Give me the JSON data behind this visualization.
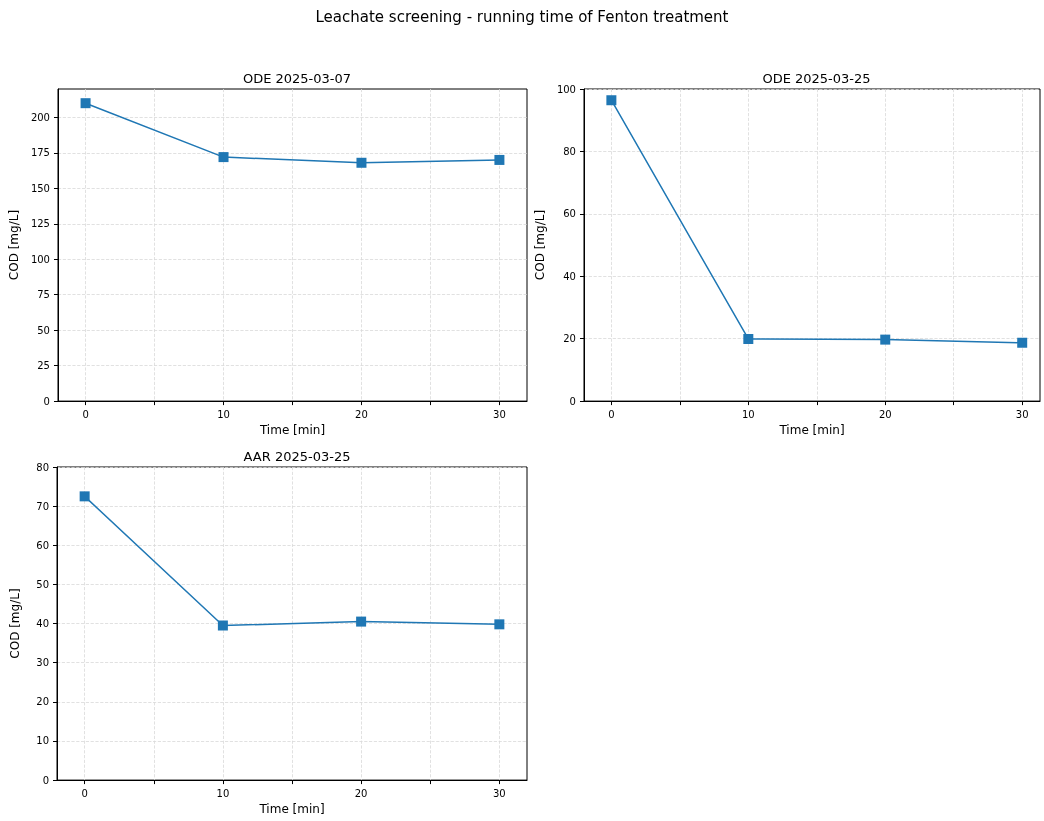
{
  "chart_data": [
    {
      "type": "line",
      "title": "ODE 2025-03-07",
      "annotations": [
        "Leachate screening - running time of Fenton treatment"
      ],
      "xlabel": "Time [min]",
      "ylabel": "COD [mg/L]",
      "x": [
        0,
        10,
        20,
        30
      ],
      "series": [
        {
          "color": "#1f77b4",
          "values": [
            210,
            172,
            168,
            170
          ]
        }
      ],
      "xlim": [
        -2,
        32
      ],
      "xticks": [
        0,
        {
          "value": 5,
          "label": null
        },
        10,
        {
          "value": 15,
          "label": null
        },
        20,
        {
          "value": 25,
          "label": null
        },
        30
      ],
      "ylim": [
        0,
        220
      ],
      "yticks": [
        0,
        25,
        50,
        75,
        100,
        125,
        150,
        175,
        200
      ],
      "grid": true,
      "marker": "square",
      "line_style": "solid"
    },
    {
      "type": "line",
      "title": "ODE 2025-03-25",
      "xlabel": "Time [min]",
      "ylabel": "COD [mg/L]",
      "x": [
        0,
        10,
        20,
        30
      ],
      "series": [
        {
          "color": "#1f77b4",
          "values": [
            96.4,
            19.9,
            19.7,
            18.7
          ]
        }
      ],
      "xlim": [
        -2,
        31.3
      ],
      "xticks": [
        0,
        {
          "value": 5,
          "label": null
        },
        10,
        {
          "value": 15,
          "label": null
        },
        20,
        {
          "value": 25,
          "label": null
        },
        30
      ],
      "ylim": [
        0,
        100
      ],
      "yticks": [
        0,
        20,
        40,
        60,
        80,
        100
      ],
      "grid": true,
      "marker": "square",
      "line_style": "solid"
    },
    {
      "type": "line",
      "title": "AAR 2025-03-25",
      "xlabel": "Time [min]",
      "ylabel": "COD [mg/L]",
      "x": [
        0,
        10,
        20,
        30
      ],
      "series": [
        {
          "color": "#1f77b4",
          "values": [
            72.5,
            39.5,
            40.5,
            39.8
          ]
        }
      ],
      "xlim": [
        -2,
        32
      ],
      "xticks": [
        0,
        {
          "value": 5,
          "label": null
        },
        10,
        {
          "value": 15,
          "label": null
        },
        20,
        {
          "value": 25,
          "label": null
        },
        30
      ],
      "ylim": [
        0,
        80
      ],
      "yticks": [
        0,
        10,
        20,
        30,
        40,
        50,
        60,
        70,
        80
      ],
      "grid": true,
      "marker": "square",
      "line_style": "solid"
    }
  ]
}
